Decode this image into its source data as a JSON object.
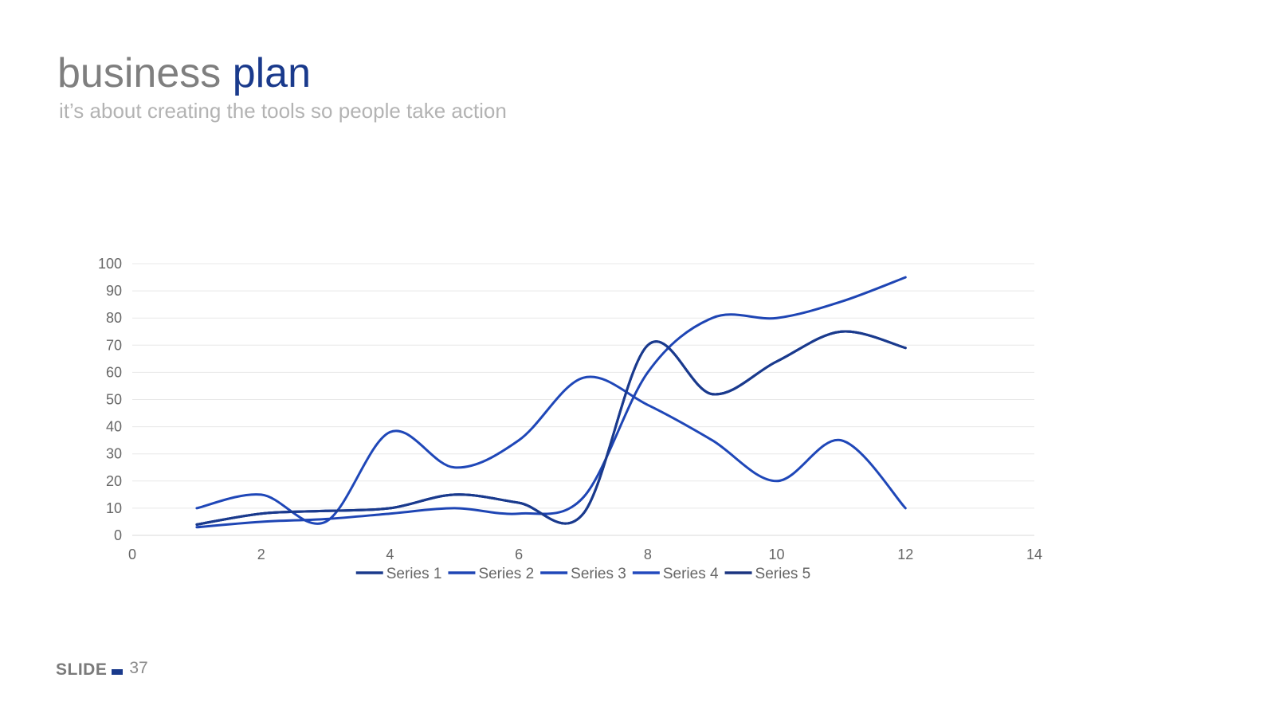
{
  "slide": {
    "title_main": "business",
    "title_accent": "plan",
    "subtitle": "it’s about creating the tools so people take action",
    "footer_label": "SLIDE",
    "footer_number": "37",
    "accent_color": "#1a3a8c"
  },
  "chart_data": {
    "type": "line",
    "title": "",
    "xlabel": "",
    "ylabel": "",
    "xlim": [
      0,
      14
    ],
    "ylim": [
      0,
      100
    ],
    "x_ticks": [
      0,
      2,
      4,
      6,
      8,
      10,
      12,
      14
    ],
    "y_ticks": [
      0,
      10,
      20,
      30,
      40,
      50,
      60,
      70,
      80,
      90,
      100
    ],
    "grid": true,
    "legend_position": "bottom",
    "smooth": true,
    "series": [
      {
        "name": "Series 1",
        "color": "#1a3a8c",
        "x": [
          1,
          2,
          3,
          4,
          5,
          6,
          7,
          8,
          9,
          10,
          11,
          12
        ],
        "y": [
          4,
          8,
          9,
          10,
          15,
          12,
          8,
          70,
          52,
          64,
          75,
          69
        ]
      },
      {
        "name": "Series 2",
        "color": "#1e45b4",
        "x": [
          1,
          2,
          3,
          4,
          5,
          6,
          7,
          8,
          9,
          10,
          11,
          12
        ],
        "y": [
          3,
          5,
          6,
          8,
          10,
          8,
          14,
          60,
          80,
          80,
          86,
          95
        ]
      },
      {
        "name": "Series 3",
        "color": "#1f47b8",
        "x": [
          1,
          2,
          3,
          4,
          5,
          6,
          7,
          8,
          9,
          10,
          11,
          12
        ],
        "y": [
          10,
          15,
          5,
          38,
          25,
          35,
          58,
          48,
          35,
          20,
          35,
          10
        ]
      },
      {
        "name": "Series 4",
        "color": "#2249bd",
        "x": [
          1,
          2,
          3,
          4,
          5,
          6,
          7,
          8,
          9,
          10,
          11,
          12
        ],
        "y": [
          4,
          8,
          9,
          10,
          15,
          12,
          8,
          70,
          52,
          64,
          75,
          69
        ]
      },
      {
        "name": "Series 5",
        "color": "#1a3480",
        "x": [
          1,
          2,
          3,
          4,
          5,
          6,
          7,
          8,
          9,
          10,
          11,
          12
        ],
        "y": [
          4,
          8,
          9,
          10,
          15,
          12,
          8,
          70,
          52,
          64,
          75,
          69
        ]
      }
    ]
  }
}
